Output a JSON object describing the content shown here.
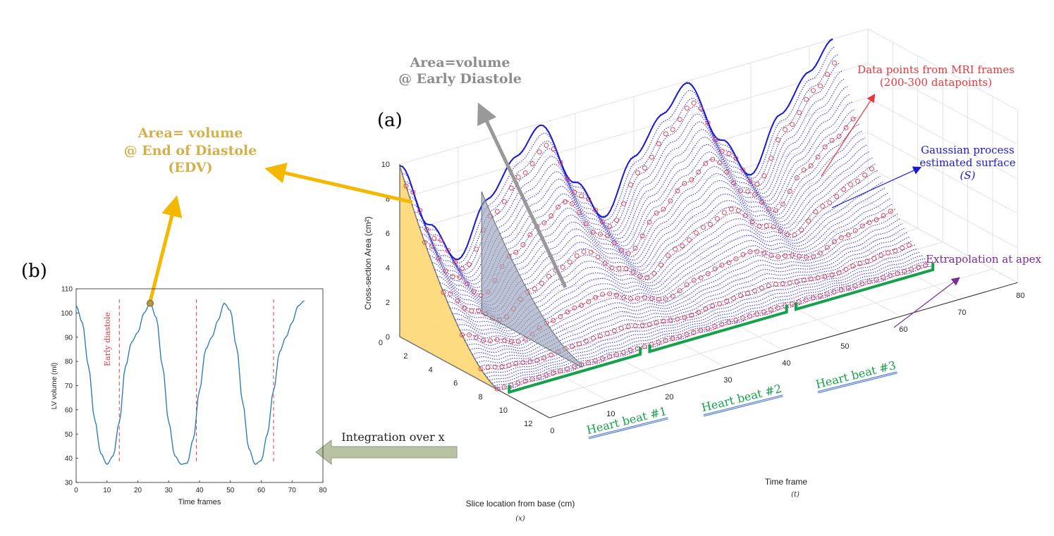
{
  "panel_a": "(a)",
  "panel_b": "(b)",
  "annotations": {
    "early_diastole_title_1": "Area=volume",
    "early_diastole_title_2": "@ Early Diastole",
    "edv_title_1": "Area= volume",
    "edv_title_2": "@ End of Diastole",
    "edv_title_3": "(EDV)",
    "mri_points_1": "Data points from MRI frames",
    "mri_points_2": "(200-300 datapoints)",
    "gp_surface_1": "Gaussian process",
    "gp_surface_2": "estimated surface",
    "gp_surface_3": "(S)",
    "extrapolation": "Extrapolation at apex",
    "integration": "Integration over x",
    "heart_beat_1": "Heart beat #1",
    "heart_beat_2": "Heart beat #2",
    "heart_beat_3": "Heart beat #3"
  },
  "colors": {
    "edv_gold": "#d4b04a",
    "early_grey": "#8c8c8c",
    "red": "#e8383d",
    "blue": "#1a1ad6",
    "purple": "#7a2a9a",
    "green": "#16a04a",
    "curve": "#1f77b4",
    "dashed": "#e8383d",
    "arrow_yellow": "#f5b800",
    "arrow_grey": "#999999",
    "fill_yellow": "#fdd873"
  },
  "chart_data": [
    {
      "id": "b",
      "type": "line",
      "title": "",
      "xlabel": "Time frames",
      "ylabel": "LV volume (ml)",
      "xlim": [
        0,
        80
      ],
      "ylim": [
        30,
        110
      ],
      "xticks": [
        0,
        10,
        20,
        30,
        40,
        50,
        60,
        70,
        80
      ],
      "yticks": [
        30,
        40,
        50,
        60,
        70,
        80,
        90,
        100,
        110
      ],
      "vline_label": "Early diastole",
      "vlines_x": [
        14,
        39,
        64
      ],
      "edv_marker": {
        "x": 24,
        "y": 104
      },
      "series": [
        {
          "x": [
            0,
            2,
            4,
            6,
            8,
            10,
            12,
            14,
            16,
            18,
            20,
            22,
            24,
            26,
            28,
            30,
            32,
            34,
            36,
            38,
            40,
            42,
            44,
            46,
            48,
            50,
            52,
            54,
            56,
            58,
            60,
            62,
            64,
            66,
            68,
            70,
            72,
            74
          ],
          "y": [
            103,
            96,
            78,
            56,
            42,
            37.5,
            41,
            55,
            78,
            88,
            92,
            100,
            104,
            98,
            78,
            55,
            41,
            37.5,
            38,
            48,
            68,
            85,
            90,
            97,
            104,
            101,
            86,
            63,
            44,
            37.5,
            39,
            50,
            68,
            84,
            90,
            96,
            103,
            105
          ]
        }
      ]
    },
    {
      "id": "a",
      "type": "scatter",
      "title": "",
      "xlabel": "Slice location from base (cm)",
      "xlabel_sub": "(x)",
      "ylabel": "Time frame",
      "ylabel_sub": "(t)",
      "zlabel": "Cross-section Area (cm²)",
      "xlim": [
        0,
        12
      ],
      "ylim": [
        0,
        80
      ],
      "zlim": [
        0,
        10
      ],
      "xticks": [
        0,
        2,
        4,
        6,
        8,
        10,
        12
      ],
      "yticks": [
        0,
        10,
        20,
        30,
        40,
        50,
        60,
        70,
        80
      ],
      "zticks": [
        0,
        2,
        4,
        6,
        8,
        10
      ],
      "surface": "area(x,t) = peak(t) * (1 - x/8)^1.6 for 0 <= x <= 8",
      "surface_peak_at_x0": {
        "t": [
          0,
          5,
          10,
          15,
          20,
          24,
          30,
          35,
          40,
          45,
          49,
          55,
          60,
          65,
          70,
          74
        ],
        "area": [
          9.9,
          6,
          3.5,
          6.5,
          8.5,
          9.9,
          6,
          3.5,
          6.5,
          8.5,
          9.9,
          6,
          3.5,
          6.5,
          8.5,
          10
        ]
      },
      "mri_slices_x": [
        0.5,
        2,
        3.5,
        5,
        6.5,
        7.8
      ],
      "heart_beats": [
        {
          "label": "Heart beat #1",
          "t": [
            0,
            24
          ]
        },
        {
          "label": "Heart beat #2",
          "t": [
            24,
            49
          ]
        },
        {
          "label": "Heart beat #3",
          "t": [
            49,
            74
          ]
        }
      ]
    }
  ]
}
